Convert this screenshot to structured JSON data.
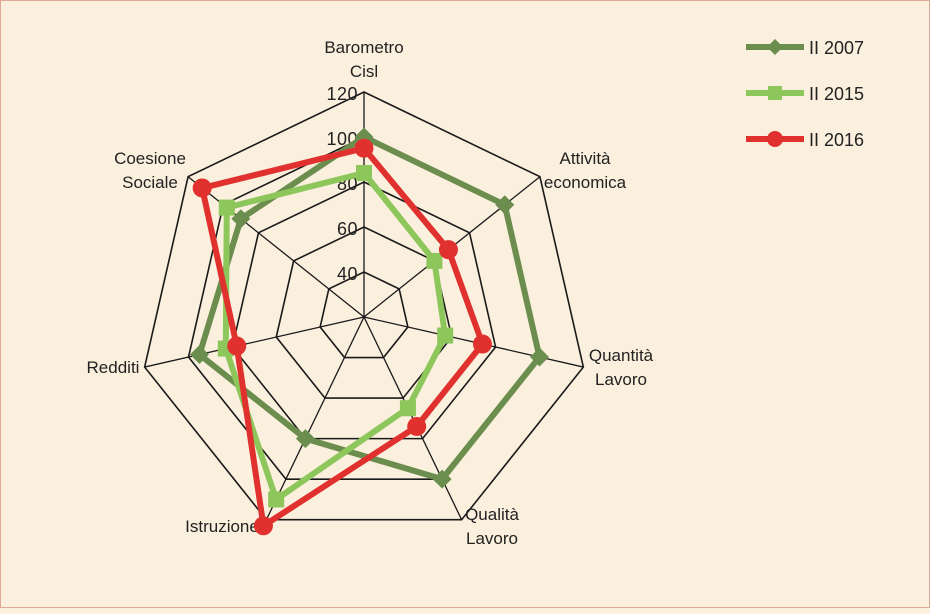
{
  "chart_data": {
    "type": "radar",
    "axes": [
      [
        "Barometro",
        "Cisl"
      ],
      [
        "Attività",
        "economica"
      ],
      [
        "Quantità",
        "Lavoro"
      ],
      [
        "Qualità",
        "Lavoro"
      ],
      [
        "Istruzione"
      ],
      [
        "Redditi"
      ],
      [
        "Coesione",
        "Sociale"
      ]
    ],
    "rmin": 20,
    "rmax": 120,
    "ticks": [
      40,
      60,
      80,
      100,
      120
    ],
    "grid": true,
    "legend_position": "top-right",
    "series": [
      {
        "name": "II 2007",
        "color": "#6b8e4e",
        "marker": "diamond",
        "values": [
          100,
          100,
          100,
          100,
          80,
          95,
          90
        ]
      },
      {
        "name": "II 2015",
        "color": "#8dc65a",
        "marker": "square",
        "values": [
          84,
          60,
          57,
          65,
          110,
          83,
          98
        ]
      },
      {
        "name": "II 2016",
        "color": "#e0312e",
        "marker": "circle",
        "values": [
          95,
          68,
          74,
          74,
          123,
          78,
          112
        ]
      }
    ]
  }
}
